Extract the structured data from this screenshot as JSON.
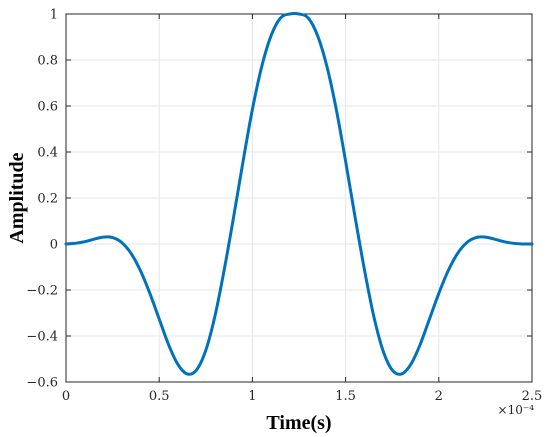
{
  "chart_data": {
    "type": "line",
    "title": "",
    "xlabel": "Time(s)",
    "ylabel": "Amplitude",
    "x_exponent_label": "×10⁻⁴",
    "xlim": [
      0,
      2.5
    ],
    "ylim": [
      -0.6,
      1
    ],
    "x_ticks": [
      0,
      0.5,
      1,
      1.5,
      2,
      2.5
    ],
    "x_tick_labels": [
      "0",
      "0.5",
      "1",
      "1.5",
      "2",
      "2.5"
    ],
    "y_ticks": [
      -0.6,
      -0.4,
      -0.2,
      0,
      0.2,
      0.4,
      0.6,
      0.8,
      1
    ],
    "y_tick_labels": [
      "−0.6",
      "−0.4",
      "−0.2",
      "0",
      "0.2",
      "0.4",
      "0.6",
      "0.8",
      "1"
    ],
    "grid": true,
    "legend": "none",
    "series": [
      {
        "color": "#0072BD",
        "x": [
          0,
          0.05,
          0.1,
          0.15,
          0.2,
          0.25,
          0.3,
          0.35,
          0.4,
          0.45,
          0.5,
          0.55,
          0.6,
          0.65,
          0.7,
          0.75,
          0.8,
          0.85,
          0.9,
          0.95,
          1.0,
          1.05,
          1.1,
          1.15,
          1.2,
          1.25,
          1.3,
          1.35,
          1.4,
          1.45,
          1.5,
          1.55,
          1.6,
          1.65,
          1.7,
          1.75,
          1.8,
          1.85,
          1.9,
          1.95,
          2.0,
          2.05,
          2.1,
          2.15,
          2.2,
          2.25,
          2.3,
          2.35,
          2.4,
          2.45,
          2.5
        ],
        "y": [
          0,
          0.003,
          0.01,
          0.021,
          0.03,
          0.028,
          0.006,
          -0.042,
          -0.117,
          -0.215,
          -0.326,
          -0.437,
          -0.523,
          -0.565,
          -0.548,
          -0.462,
          -0.31,
          -0.107,
          0.121,
          0.36,
          0.585,
          0.771,
          0.905,
          0.982,
          1.0,
          1.0,
          0.982,
          0.905,
          0.771,
          0.585,
          0.36,
          0.121,
          -0.107,
          -0.31,
          -0.462,
          -0.548,
          -0.565,
          -0.523,
          -0.437,
          -0.326,
          -0.215,
          -0.117,
          -0.042,
          0.006,
          0.028,
          0.03,
          0.021,
          0.01,
          0.003,
          0,
          0
        ]
      }
    ]
  }
}
